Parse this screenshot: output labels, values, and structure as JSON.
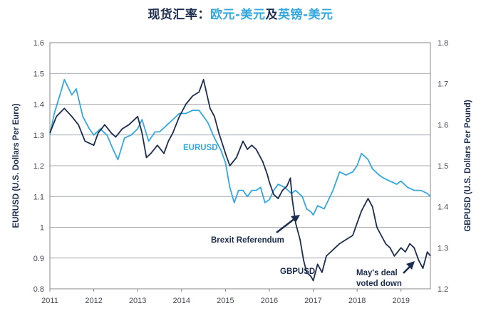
{
  "chart_data": {
    "type": "line",
    "title_parts": [
      "现货汇率：",
      "欧元-美元",
      "及",
      "英镑-美元"
    ],
    "title_colors": [
      "#1c2d4f",
      "#34a8de",
      "#1c2d4f",
      "#34a8de"
    ],
    "ylabel_left": "EURUSD (U.S. Dollars Per Euro)",
    "ylabel_right": "GBPUSD (U.S. Dollars Per Pound)",
    "ylim_left": [
      0.8,
      1.6
    ],
    "ylim_right": [
      1.2,
      1.8
    ],
    "xlim": [
      2011.0,
      2019.67
    ],
    "yticks_left": [
      "0.8",
      "0.9",
      "1",
      "1.1",
      "1.2",
      "1.3",
      "1.4",
      "1.5",
      "1.6"
    ],
    "yticks_right": [
      "1.2",
      "1.3",
      "1.4",
      "1.5",
      "1.6",
      "1.7",
      "1.8"
    ],
    "xticks": [
      "2011",
      "2012",
      "2013",
      "2014",
      "2015",
      "2016",
      "2017",
      "2018",
      "2019"
    ],
    "grid": "horizontal",
    "series": [
      {
        "name": "EURUSD",
        "axis": "left",
        "color": "#34a8de",
        "x": [
          2011.0,
          2011.1,
          2011.25,
          2011.33,
          2011.5,
          2011.6,
          2011.75,
          2011.9,
          2012.0,
          2012.15,
          2012.3,
          2012.45,
          2012.55,
          2012.7,
          2012.85,
          2013.0,
          2013.1,
          2013.25,
          2013.4,
          2013.5,
          2013.65,
          2013.8,
          2013.95,
          2014.1,
          2014.25,
          2014.4,
          2014.5,
          2014.6,
          2014.75,
          2014.9,
          2015.0,
          2015.1,
          2015.2,
          2015.3,
          2015.4,
          2015.5,
          2015.6,
          2015.7,
          2015.8,
          2015.9,
          2016.0,
          2016.1,
          2016.2,
          2016.35,
          2016.5,
          2016.6,
          2016.75,
          2016.85,
          2016.95,
          2017.0,
          2017.1,
          2017.25,
          2017.35,
          2017.45,
          2017.6,
          2017.75,
          2017.9,
          2018.0,
          2018.1,
          2018.25,
          2018.35,
          2018.5,
          2018.6,
          2018.75,
          2018.9,
          2019.0,
          2019.15,
          2019.3,
          2019.45,
          2019.6,
          2019.67
        ],
        "values": [
          1.3,
          1.37,
          1.44,
          1.48,
          1.43,
          1.45,
          1.36,
          1.32,
          1.3,
          1.32,
          1.3,
          1.25,
          1.22,
          1.29,
          1.3,
          1.32,
          1.35,
          1.28,
          1.31,
          1.31,
          1.33,
          1.35,
          1.37,
          1.37,
          1.38,
          1.38,
          1.36,
          1.34,
          1.29,
          1.25,
          1.21,
          1.13,
          1.08,
          1.12,
          1.12,
          1.1,
          1.12,
          1.12,
          1.13,
          1.08,
          1.09,
          1.12,
          1.14,
          1.13,
          1.11,
          1.12,
          1.1,
          1.06,
          1.05,
          1.04,
          1.07,
          1.06,
          1.09,
          1.12,
          1.18,
          1.17,
          1.18,
          1.2,
          1.24,
          1.22,
          1.19,
          1.17,
          1.16,
          1.15,
          1.14,
          1.15,
          1.13,
          1.12,
          1.12,
          1.11,
          1.1
        ]
      },
      {
        "name": "GBPUSD",
        "axis": "right",
        "color": "#1c2d4f",
        "x": [
          2011.0,
          2011.15,
          2011.33,
          2011.5,
          2011.65,
          2011.8,
          2012.0,
          2012.1,
          2012.25,
          2012.4,
          2012.5,
          2012.65,
          2012.8,
          2013.0,
          2013.1,
          2013.2,
          2013.3,
          2013.45,
          2013.6,
          2013.7,
          2013.8,
          2013.95,
          2014.1,
          2014.25,
          2014.4,
          2014.5,
          2014.65,
          2014.75,
          2014.85,
          2015.0,
          2015.1,
          2015.25,
          2015.4,
          2015.5,
          2015.6,
          2015.7,
          2015.85,
          2015.95,
          2016.0,
          2016.1,
          2016.2,
          2016.3,
          2016.4,
          2016.48,
          2016.52,
          2016.6,
          2016.7,
          2016.78,
          2016.85,
          2016.95,
          2017.0,
          2017.1,
          2017.2,
          2017.3,
          2017.4,
          2017.5,
          2017.6,
          2017.75,
          2017.9,
          2018.0,
          2018.1,
          2018.25,
          2018.35,
          2018.45,
          2018.55,
          2018.65,
          2018.75,
          2018.85,
          2019.0,
          2019.1,
          2019.2,
          2019.3,
          2019.4,
          2019.5,
          2019.6,
          2019.67
        ],
        "values": [
          1.58,
          1.62,
          1.64,
          1.62,
          1.6,
          1.56,
          1.55,
          1.58,
          1.6,
          1.58,
          1.57,
          1.59,
          1.6,
          1.62,
          1.58,
          1.52,
          1.53,
          1.55,
          1.53,
          1.56,
          1.58,
          1.62,
          1.65,
          1.67,
          1.68,
          1.71,
          1.64,
          1.62,
          1.58,
          1.53,
          1.5,
          1.52,
          1.56,
          1.54,
          1.55,
          1.54,
          1.51,
          1.48,
          1.46,
          1.43,
          1.42,
          1.44,
          1.45,
          1.47,
          1.42,
          1.36,
          1.32,
          1.27,
          1.24,
          1.23,
          1.22,
          1.26,
          1.24,
          1.28,
          1.29,
          1.3,
          1.31,
          1.32,
          1.33,
          1.36,
          1.39,
          1.42,
          1.4,
          1.35,
          1.33,
          1.31,
          1.3,
          1.28,
          1.3,
          1.29,
          1.31,
          1.3,
          1.27,
          1.25,
          1.29,
          1.28
        ]
      }
    ],
    "annotations": [
      {
        "text": "EURUSD",
        "color": "#34a8de"
      },
      {
        "text": "Brexit Referendum",
        "color": "#1c2d4f"
      },
      {
        "text": "GBPUSD",
        "color": "#1c2d4f"
      },
      {
        "text": "May's deal",
        "color": "#1c2d4f"
      },
      {
        "text": "voted down",
        "color": "#1c2d4f"
      }
    ]
  }
}
